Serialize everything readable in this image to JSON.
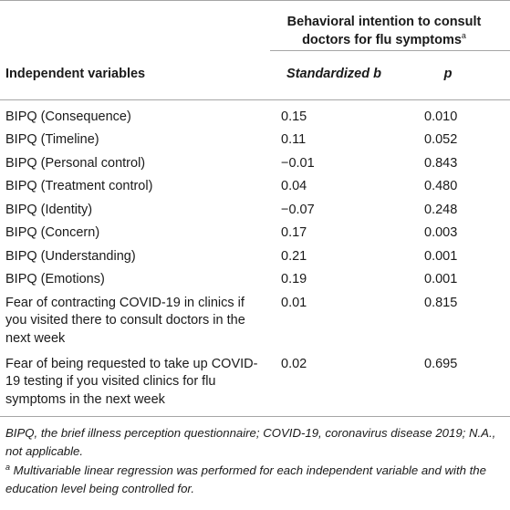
{
  "header": {
    "group_title": "Behavioral intention to consult doctors for flu symptoms",
    "group_title_sup": "a",
    "col_independent": "Independent variables",
    "col_b": "Standardized b",
    "col_p": "p"
  },
  "rows": [
    {
      "label": "BIPQ (Consequence)",
      "b": "0.15",
      "p": "0.010"
    },
    {
      "label": "BIPQ (Timeline)",
      "b": "0.11",
      "p": "0.052"
    },
    {
      "label": "BIPQ (Personal control)",
      "b": "−0.01",
      "p": "0.843"
    },
    {
      "label": "BIPQ (Treatment control)",
      "b": "0.04",
      "p": "0.480"
    },
    {
      "label": "BIPQ (Identity)",
      "b": "−0.07",
      "p": "0.248"
    },
    {
      "label": "BIPQ (Concern)",
      "b": "0.17",
      "p": "0.003"
    },
    {
      "label": "BIPQ (Understanding)",
      "b": "0.21",
      "p": "0.001"
    },
    {
      "label": "BIPQ (Emotions)",
      "b": "0.19",
      "p": "0.001"
    },
    {
      "label": "Fear of contracting COVID-19 in clinics if you visited there to consult doctors in the next week",
      "b": "0.01",
      "p": "0.815"
    },
    {
      "label": "Fear of being requested to take up COVID-19 testing if you visited clinics for flu symptoms in the next week",
      "b": "0.02",
      "p": "0.695"
    }
  ],
  "footnotes": {
    "abbrev": "BIPQ, the brief illness perception questionnaire; COVID-19, coronavirus disease 2019; N.A., not applicable.",
    "note_marker": "a",
    "note": " Multivariable linear regression was performed for each independent variable and with the education level being controlled for."
  }
}
